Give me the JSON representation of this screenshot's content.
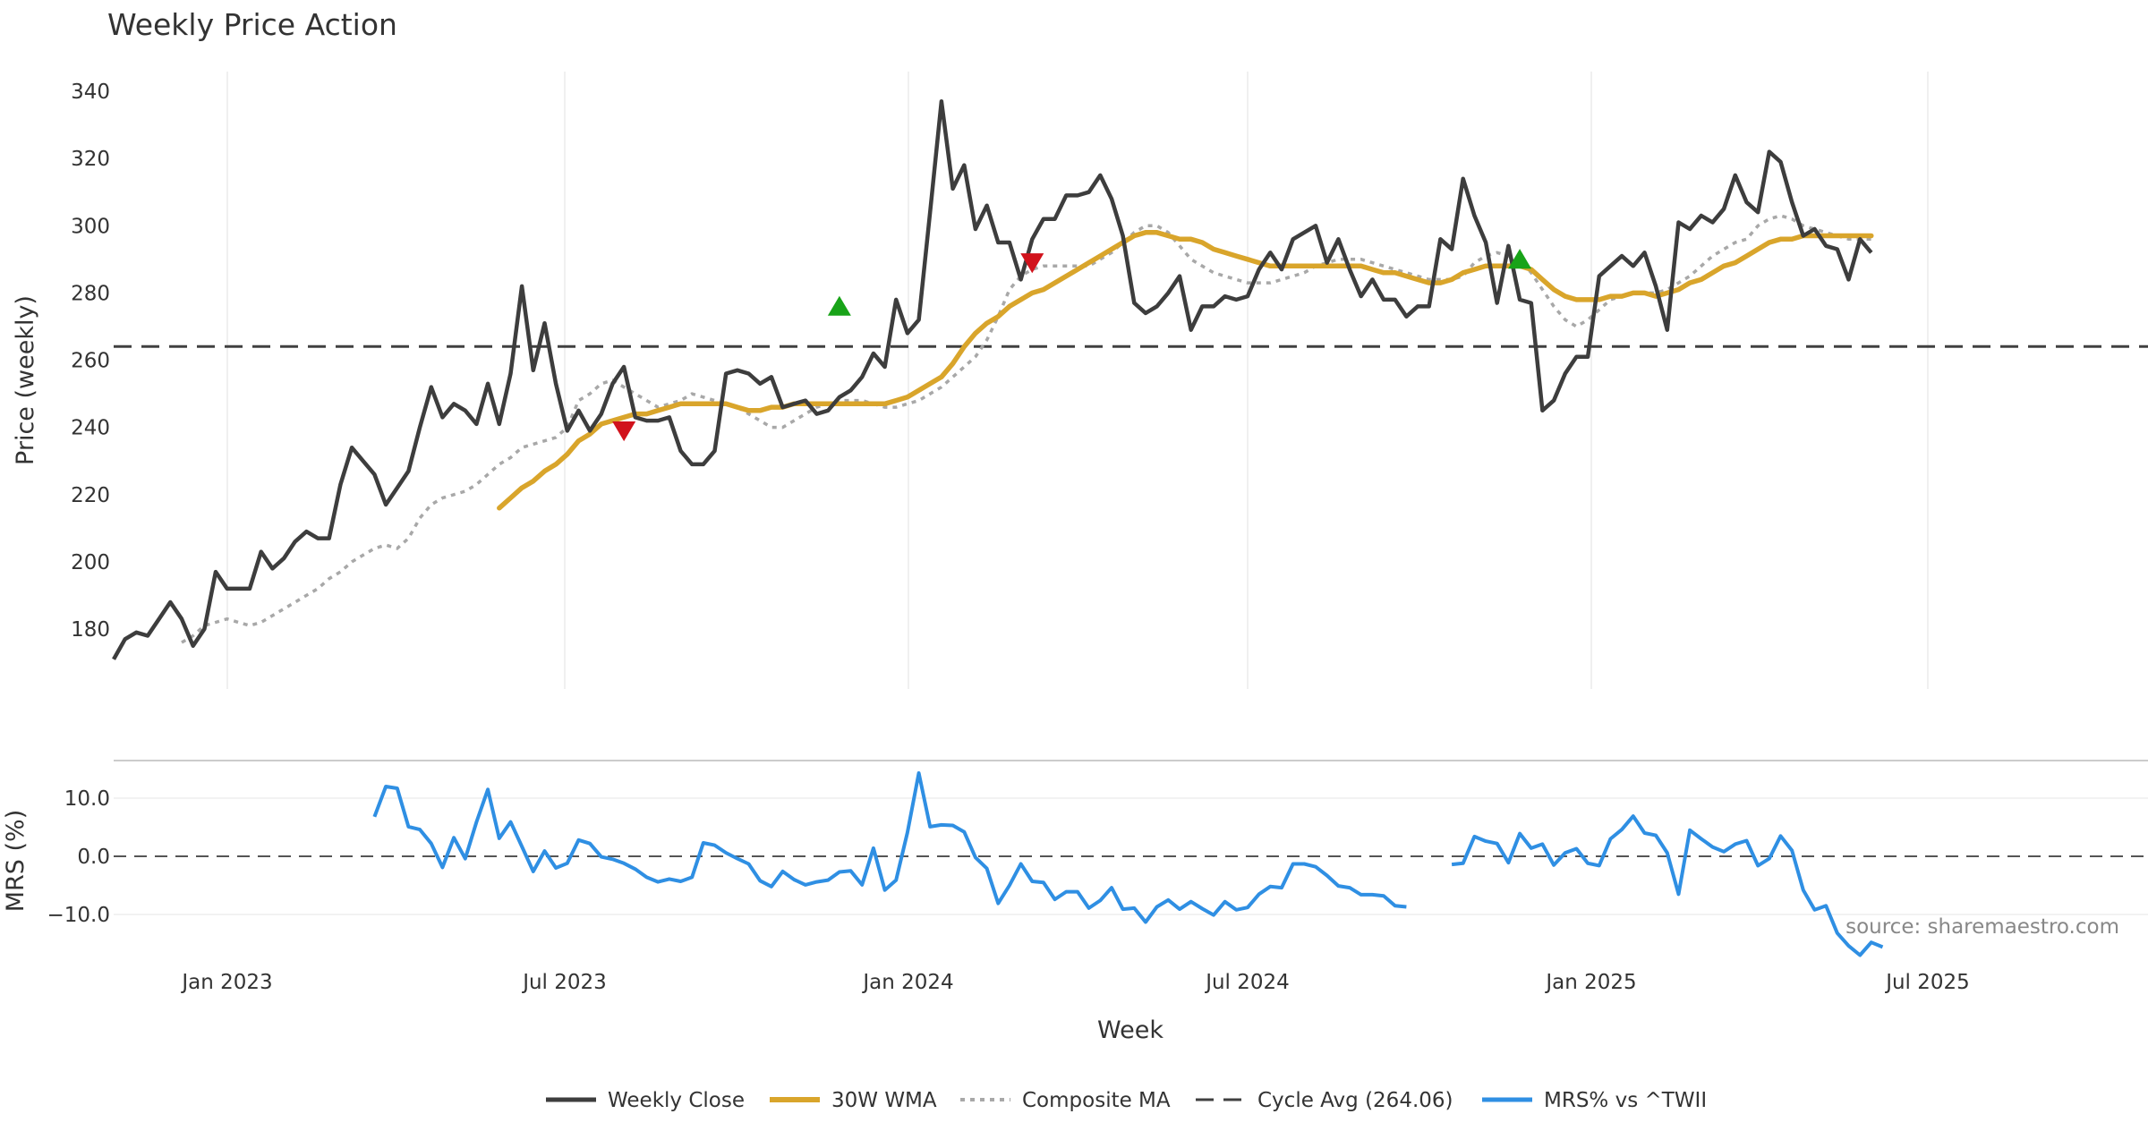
{
  "chart_data": {
    "type": "line",
    "title": "Weekly Price Action",
    "xlabel": "Week",
    "x_ticks": [
      "Jan 2023",
      "Jul 2023",
      "Jan 2024",
      "Jul 2024",
      "Jan 2025",
      "Jul 2025"
    ],
    "source": "source: sharemaestro.com",
    "price_panel": {
      "ylabel": "Price (weekly)",
      "ylim": [
        166,
        349
      ],
      "y_ticks": [
        180,
        200,
        220,
        240,
        260,
        280,
        300,
        320,
        340
      ],
      "grid": "vertical",
      "cycle_avg": 264.06,
      "series": [
        {
          "name": "Weekly Close",
          "color": "#3d3d3d",
          "values": [
            171,
            177,
            179,
            178,
            183,
            188,
            183,
            175,
            180,
            197,
            192,
            192,
            192,
            203,
            198,
            201,
            206,
            209,
            207,
            207,
            223,
            234,
            230,
            226,
            217,
            222,
            227,
            240,
            252,
            243,
            247,
            245,
            241,
            253,
            241,
            256,
            282,
            257,
            271,
            253,
            239,
            245,
            239,
            244,
            253,
            258,
            243,
            242,
            242,
            243,
            233,
            229,
            229,
            233,
            256,
            257,
            256,
            253,
            255,
            246,
            247,
            248,
            244,
            245,
            249,
            251,
            255,
            262,
            258,
            278,
            268,
            272,
            304,
            337,
            311,
            318,
            299,
            306,
            295,
            295,
            284,
            296,
            302,
            302,
            309,
            309,
            310,
            315,
            308,
            297,
            277,
            274,
            276,
            280,
            285,
            269,
            276,
            276,
            279,
            278,
            279,
            287,
            292,
            287,
            296,
            298,
            300,
            289,
            296,
            287,
            279,
            284,
            278,
            278,
            273,
            276,
            276,
            296,
            293,
            314,
            303,
            295,
            277,
            294,
            278,
            277,
            245,
            248,
            256,
            261,
            261,
            285,
            288,
            291,
            288,
            292,
            282,
            269,
            301,
            299,
            303,
            301,
            305,
            315,
            307,
            304,
            322,
            319,
            307,
            297,
            299,
            294,
            293,
            284,
            296,
            292
          ],
          "start_index": 0
        },
        {
          "name": "30W WMA",
          "color": "#d9a52b",
          "values": [
            216,
            219,
            222,
            224,
            227,
            229,
            232,
            236,
            238,
            241,
            242,
            243,
            244,
            244,
            245,
            246,
            247,
            247,
            247,
            247,
            247,
            246,
            245,
            245,
            246,
            246,
            247,
            247,
            247,
            247,
            247,
            247,
            247,
            247,
            247,
            248,
            249,
            251,
            253,
            255,
            259,
            264,
            268,
            271,
            273,
            276,
            278,
            280,
            281,
            283,
            285,
            287,
            289,
            291,
            293,
            295,
            297,
            298,
            298,
            297,
            296,
            296,
            295,
            293,
            292,
            291,
            290,
            289,
            288,
            288,
            288,
            288,
            288,
            288,
            288,
            288,
            288,
            287,
            286,
            286,
            285,
            284,
            283,
            283,
            284,
            286,
            287,
            288,
            288,
            288,
            288,
            287,
            284,
            281,
            279,
            278,
            278,
            278,
            279,
            279,
            280,
            280,
            279,
            280,
            281,
            283,
            284,
            286,
            288,
            289,
            291,
            293,
            295,
            296,
            296,
            297,
            297,
            297,
            297,
            297,
            297,
            297
          ],
          "start_index": 34
        },
        {
          "name": "Composite MA",
          "color": "#a8a8a8",
          "values": [
            176,
            178,
            181,
            182,
            183,
            182,
            181,
            182,
            184,
            186,
            188,
            190,
            192,
            195,
            197,
            200,
            202,
            204,
            205,
            204,
            207,
            213,
            217,
            219,
            220,
            221,
            223,
            226,
            229,
            231,
            234,
            235,
            236,
            237,
            240,
            248,
            250,
            253,
            254,
            252,
            250,
            248,
            246,
            247,
            248,
            250,
            249,
            248,
            247,
            246,
            244,
            242,
            240,
            240,
            242,
            244,
            246,
            247,
            248,
            248,
            248,
            247,
            246,
            246,
            247,
            248,
            250,
            252,
            255,
            258,
            261,
            266,
            273,
            281,
            285,
            287,
            288,
            288,
            288,
            288,
            288,
            290,
            292,
            295,
            298,
            300,
            300,
            298,
            294,
            290,
            288,
            286,
            285,
            284,
            283,
            283,
            283,
            284,
            285,
            286,
            288,
            289,
            290,
            290,
            290,
            289,
            288,
            287,
            286,
            285,
            284,
            284,
            284,
            285,
            289,
            291,
            292,
            291,
            290,
            286,
            281,
            276,
            272,
            270,
            272,
            275,
            278,
            279,
            280,
            280,
            280,
            281,
            283,
            285,
            288,
            291,
            293,
            295,
            296,
            300,
            302,
            303,
            302,
            300,
            299,
            298,
            297,
            296,
            296,
            296
          ],
          "start_index": 6
        },
        {
          "name": "Cycle Avg (264.06)",
          "color": "#404040",
          "dashed": true
        }
      ],
      "markers": [
        {
          "type": "sell",
          "index": 45,
          "value": 239
        },
        {
          "type": "buy",
          "index": 64,
          "value": 276
        },
        {
          "type": "sell",
          "index": 81,
          "value": 289
        },
        {
          "type": "buy",
          "index": 124,
          "value": 290
        }
      ],
      "marker_colors": {
        "buy": "#18a318",
        "sell": "#d1121c"
      }
    },
    "mrs_panel": {
      "ylabel": "MRS (%)",
      "ylim": [
        -17,
        15
      ],
      "y_ticks": [
        10.0,
        0.0,
        -10.0
      ],
      "y_tick_labels": [
        "10.0",
        "0.0",
        "−10.0"
      ],
      "series": [
        {
          "name": "MRS% vs ^TWII",
          "color": "#2f8fe3",
          "segments": [
            {
              "start_index": 23,
              "values": [
                6.8,
                12.0,
                11.7,
                5.1,
                4.6,
                2.2,
                -1.9,
                3.2,
                -0.4,
                5.9,
                11.5,
                3.1,
                5.9,
                1.7,
                -2.6,
                0.9,
                -2.0,
                -1.2,
                2.8,
                2.2,
                -0.1,
                -0.5,
                -1.2,
                -2.2,
                -3.6,
                -4.4,
                -3.9,
                -4.3,
                -3.6,
                2.3,
                1.9,
                0.6,
                -0.4,
                -1.3,
                -4.2,
                -5.2,
                -2.6,
                -4.0,
                -4.9,
                -4.4,
                -4.1,
                -2.7,
                -2.5,
                -4.9,
                1.4,
                -5.8,
                -4.1,
                4.1,
                14.3,
                5.1,
                5.4,
                5.3,
                4.2,
                -0.2,
                -2.1,
                -8.1,
                -5.0,
                -1.3,
                -4.3,
                -4.5,
                -7.4,
                -6.1,
                -6.1,
                -8.9,
                -7.6,
                -5.4,
                -9.1,
                -8.9,
                -11.3,
                -8.7,
                -7.5,
                -9.1,
                -7.8,
                -9.0,
                -10.1,
                -7.8,
                -9.2,
                -8.8,
                -6.5,
                -5.2,
                -5.4,
                -1.3,
                -1.3,
                -1.8,
                -3.3,
                -5.1,
                -5.4,
                -6.6,
                -6.6,
                -6.8,
                -8.5,
                -8.7
              ]
            },
            {
              "start_index": 118,
              "values": [
                -1.4,
                -1.2,
                3.4,
                2.6,
                2.2,
                -1.1,
                3.9,
                1.4,
                2.1,
                -1.5,
                0.6,
                1.3,
                -1.2,
                -1.6,
                3.0,
                4.6,
                6.9,
                4.0,
                3.6,
                0.6,
                -6.5,
                4.5,
                3.0,
                1.6,
                0.8,
                2.1,
                2.7,
                -1.6,
                -0.4,
                3.5,
                1.0,
                -5.8,
                -9.2,
                -8.5,
                -13.2,
                -15.4,
                -17.0,
                -14.8,
                -15.6
              ]
            }
          ]
        }
      ]
    },
    "legend": {
      "position": "bottom-center",
      "entries": [
        "Weekly Close",
        "30W WMA",
        "Composite MA",
        "Cycle Avg (264.06)",
        "MRS% vs ^TWII"
      ]
    }
  }
}
